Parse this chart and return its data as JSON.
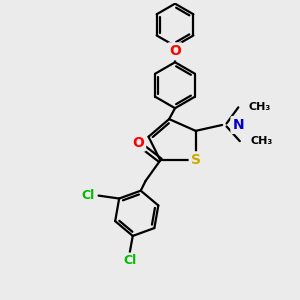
{
  "background_color": "#ebebeb",
  "bond_color": "#000000",
  "bond_width": 1.6,
  "atom_colors": {
    "S": "#ccaa00",
    "O": "#ff0000",
    "N": "#0000cc",
    "Cl": "#00bb00",
    "C": "#000000"
  },
  "figsize": [
    3.0,
    3.0
  ],
  "dpi": 100
}
